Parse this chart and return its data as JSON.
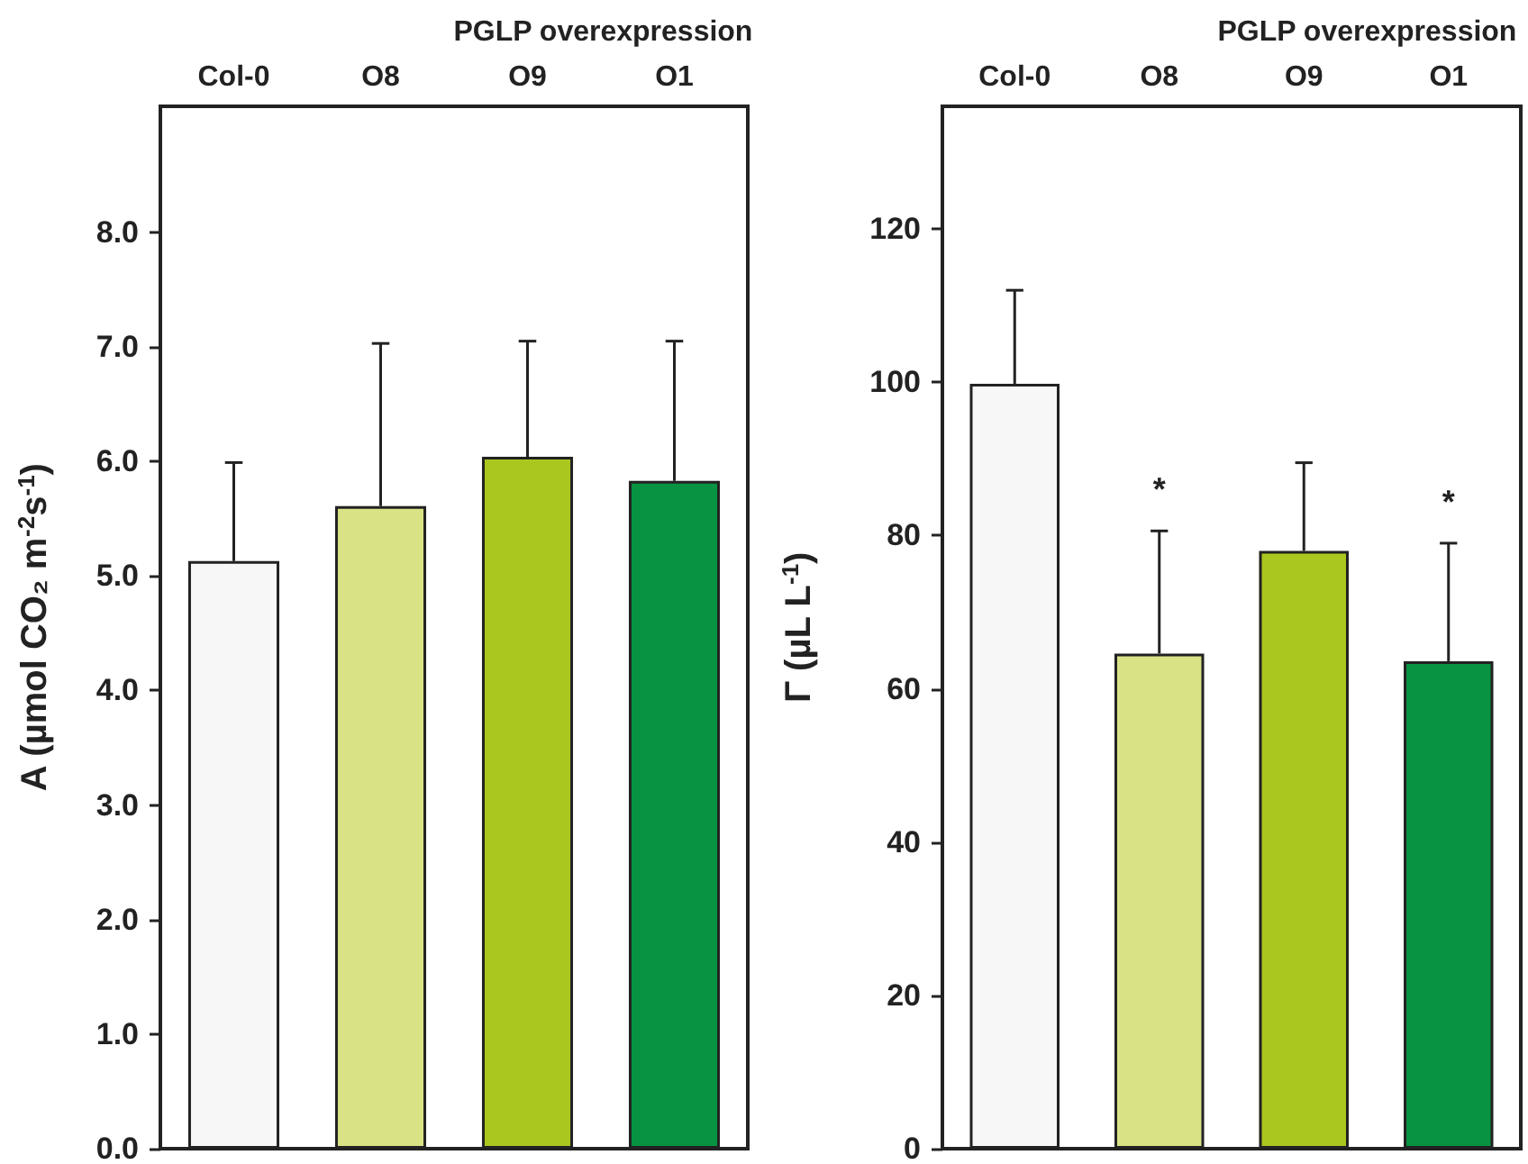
{
  "chart_data": [
    {
      "type": "bar",
      "xlabel": "PGLP overexpression",
      "ylabel": "A (µmol CO₂ m$^{-2}$s$^{-1}$)",
      "categories": [
        "Col-0",
        "O8",
        "O9",
        "O1"
      ],
      "values": [
        5.13,
        5.61,
        6.04,
        5.83
      ],
      "colors": [
        "#f7f7f7",
        "#d9e285",
        "#a9c71e",
        "#079342"
      ],
      "errors": [
        [
          5.13,
          5.99
        ],
        [
          5.61,
          7.03
        ],
        [
          6.04,
          7.05
        ],
        [
          5.83,
          7.05
        ]
      ],
      "ylim": [
        0,
        9.1
      ],
      "yticks": [
        {
          "value": 0,
          "label": "0.0"
        },
        {
          "value": 1,
          "label": "1.0"
        },
        {
          "value": 2,
          "label": "2.0"
        },
        {
          "value": 3,
          "label": "3.0"
        },
        {
          "value": 4,
          "label": "4.0"
        },
        {
          "value": 5,
          "label": "5.0"
        },
        {
          "value": 6,
          "label": "6.0"
        },
        {
          "value": 7,
          "label": "7.0"
        },
        {
          "value": 8,
          "label": "8.0"
        }
      ],
      "grid": false
    },
    {
      "type": "bar",
      "xlabel": "PGLP overexpression",
      "ylabel": "Γ (µL L$^{-1}$)",
      "categories": [
        "Col-0",
        "O8",
        "O9",
        "O1"
      ],
      "values": [
        99.8,
        64.6,
        78,
        63.6
      ],
      "colors": [
        "#f7f7f7",
        "#d9e285",
        "#a9c71e",
        "#079342"
      ],
      "errors": [
        [
          99.8,
          112
        ],
        [
          64.6,
          80.6
        ],
        [
          78,
          89.5
        ],
        [
          63.6,
          79
        ]
      ],
      "annotations": [
        {
          "text": "*",
          "x": "O8",
          "y": 80.6
        },
        {
          "text": "*",
          "x": "O1",
          "y": 79
        }
      ],
      "ylim": [
        0,
        136
      ],
      "yticks": [
        0,
        20,
        40,
        60,
        80,
        100,
        120
      ],
      "grid": false
    }
  ]
}
